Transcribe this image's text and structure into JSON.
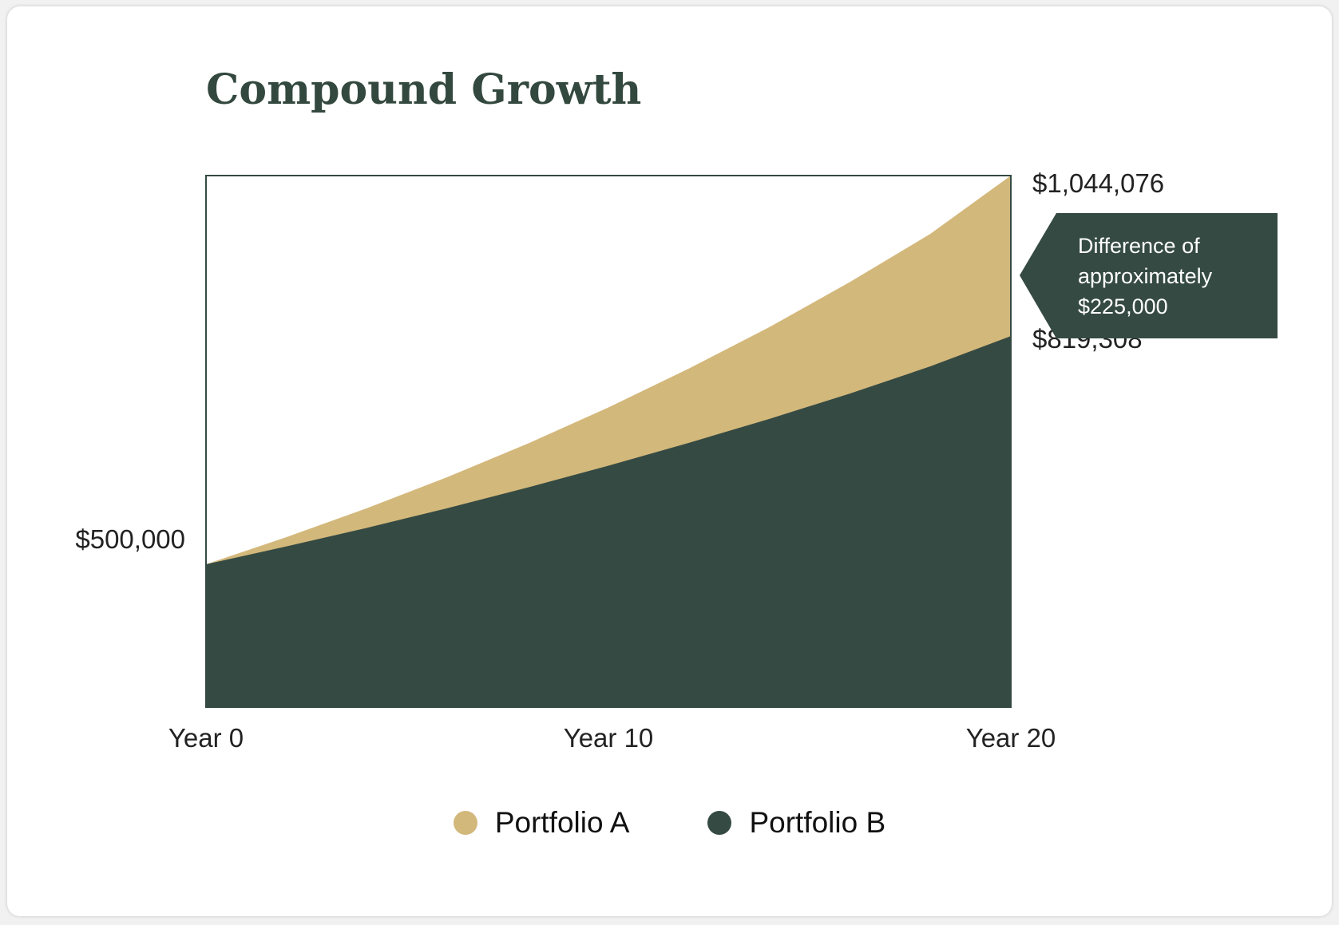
{
  "colors": {
    "portfolio_a": "#d3b87b",
    "portfolio_b": "#354a43",
    "frame": "#354a43",
    "callout_bg": "#354a43"
  },
  "chart_data": {
    "type": "area",
    "title": "Compound Growth",
    "x": [
      0,
      2,
      4,
      6,
      8,
      10,
      12,
      14,
      16,
      18,
      20
    ],
    "x_tick_labels": [
      {
        "x": 0,
        "label": "Year 0"
      },
      {
        "x": 10,
        "label": "Year 10"
      },
      {
        "x": 20,
        "label": "Year 20"
      }
    ],
    "ylim": [
      300000,
      1044076
    ],
    "series": [
      {
        "name": "Portfolio A",
        "values": [
          500000,
          538000,
          578500,
          622000,
          669000,
          719500,
          774000,
          832000,
          895000,
          962500,
          1044076
        ]
      },
      {
        "name": "Portfolio B",
        "values": [
          500000,
          525000,
          551000,
          578500,
          607500,
          638000,
          670000,
          703500,
          739000,
          777000,
          819308
        ]
      }
    ],
    "annotations": {
      "start_value": "$500,000",
      "end_value_a": "$1,044,076",
      "end_value_b": "$819,308",
      "difference": "Difference of approximately $225,000"
    }
  }
}
